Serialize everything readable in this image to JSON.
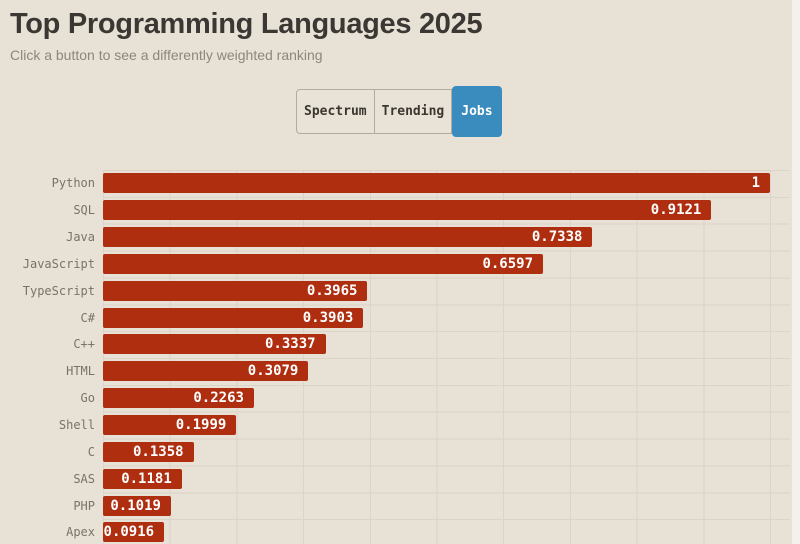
{
  "header": {
    "title": "Top Programming Languages 2025",
    "subtitle": "Click a button to see a differently weighted ranking"
  },
  "toolbar": {
    "buttons": [
      {
        "label": "Spectrum",
        "active": false
      },
      {
        "label": "Trending",
        "active": false
      },
      {
        "label": "Jobs",
        "active": true
      }
    ]
  },
  "chart_data": {
    "type": "bar",
    "orientation": "horizontal",
    "title": "Top Programming Languages 2025",
    "active_weighting": "Jobs",
    "categories": [
      "Python",
      "SQL",
      "Java",
      "JavaScript",
      "TypeScript",
      "C#",
      "C++",
      "HTML",
      "Go",
      "Shell",
      "C",
      "SAS",
      "PHP",
      "Apex"
    ],
    "values": [
      1,
      0.9121,
      0.7338,
      0.6597,
      0.3965,
      0.3903,
      0.3337,
      0.3079,
      0.2263,
      0.1999,
      0.1358,
      0.1181,
      0.1019,
      0.0916
    ],
    "value_labels": [
      "1",
      "0.9121",
      "0.7338",
      "0.6597",
      "0.3965",
      "0.3903",
      "0.3337",
      "0.3079",
      "0.2263",
      "0.1999",
      "0.1358",
      "0.1181",
      "0.1019",
      "0.0916"
    ],
    "xlim": [
      0,
      1
    ],
    "grid": true,
    "grid_step": 0.1,
    "legend": false,
    "bar_color": "#ae2e0f",
    "background_color": "#e8e1d6",
    "value_label_color": "#ffffff",
    "category_label_color": "#7a7366"
  },
  "colors": {
    "accent_active": "#3a8cbe",
    "bar": "#ae2e0f",
    "background": "#e8e1d6"
  }
}
